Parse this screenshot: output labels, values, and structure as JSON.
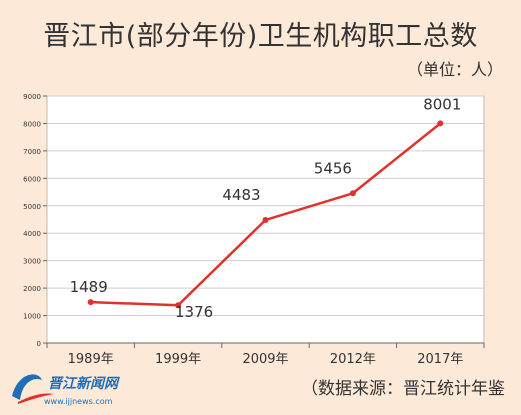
{
  "title": "晋江市(部分年份)卫生机构职工总数",
  "unit": "（单位：人）",
  "source": "（数据来源：晋江统计年鉴",
  "logo": {
    "name": "晋江新闻网",
    "url": "www.ijjnews.com"
  },
  "colors": {
    "line": "#e0312c",
    "plot_bg": "#ffffff",
    "page_bg": "#fde9d8"
  },
  "chart_data": {
    "type": "line",
    "categories": [
      "1989年",
      "1999年",
      "2009年",
      "2012年",
      "2017年"
    ],
    "series": [
      {
        "values": [
          1489,
          1376,
          4483,
          5456,
          8001
        ]
      }
    ],
    "ylim": [
      0,
      9000
    ],
    "yticks": [
      0,
      1000,
      2000,
      3000,
      4000,
      5000,
      6000,
      7000,
      8000,
      9000
    ],
    "grid": true,
    "data_labels": [
      "1489",
      "1376",
      "4483",
      "5456",
      "8001"
    ]
  }
}
